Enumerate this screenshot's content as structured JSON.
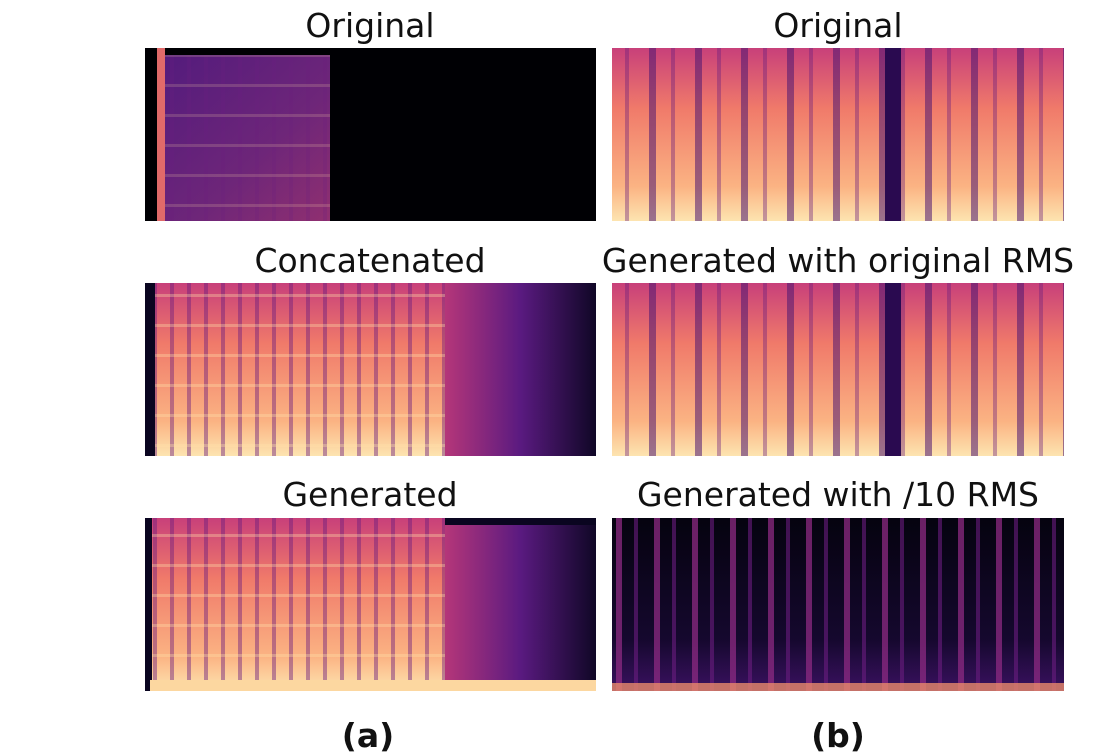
{
  "columns": [
    {
      "caption": "(a)",
      "titles": [
        "Original",
        "Concatenated",
        "Generated"
      ]
    },
    {
      "caption": "(b)",
      "titles": [
        "Original",
        "Generated with original RMS",
        "Generated with /10 RMS"
      ]
    }
  ]
}
